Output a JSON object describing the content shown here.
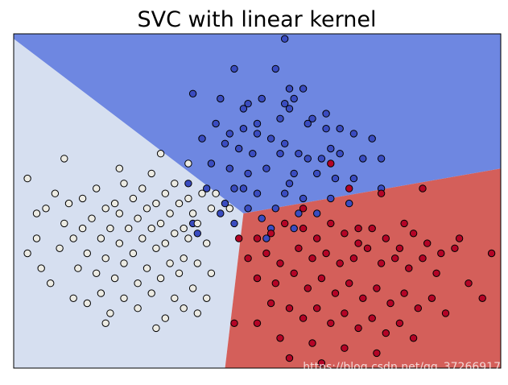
{
  "page": {
    "watermark": "https://blog.csdn.net/qq_37266917"
  },
  "chart_data": {
    "type": "scatter",
    "title": "SVC with linear kernel",
    "xlabel": "",
    "ylabel": "",
    "xlim": [
      -4.3,
      6.3
    ],
    "ylim": [
      -2.3,
      4.4
    ],
    "grid": false,
    "legend": "none",
    "colors": {
      "region_blue": "#6e87e1",
      "region_white": "#d6dff0",
      "region_red": "#d45f5a",
      "point_blue": "#3a4cc0",
      "point_white": "#ecebe3",
      "point_red": "#b40426",
      "point_edge": "#000000",
      "boundary": "#000000"
    },
    "regions": [
      {
        "class": "blue",
        "polygon": [
          [
            -4.3,
            4.4
          ],
          [
            6.3,
            4.4
          ],
          [
            6.3,
            1.7
          ],
          [
            0.7,
            0.8
          ],
          [
            -4.3,
            4.3
          ]
        ]
      },
      {
        "class": "white",
        "polygon": [
          [
            -4.3,
            4.3
          ],
          [
            0.7,
            0.8
          ],
          [
            0.3,
            -2.3
          ],
          [
            -4.3,
            -2.3
          ]
        ]
      },
      {
        "class": "red",
        "polygon": [
          [
            0.7,
            0.8
          ],
          [
            6.3,
            1.7
          ],
          [
            6.3,
            -2.3
          ],
          [
            0.3,
            -2.3
          ]
        ]
      }
    ],
    "series": [
      {
        "class": "blue",
        "points": [
          [
            1.6,
            4.3
          ],
          [
            0.5,
            3.7
          ],
          [
            1.4,
            3.7
          ],
          [
            1.7,
            3.3
          ],
          [
            2.0,
            3.3
          ],
          [
            -0.4,
            3.2
          ],
          [
            1.1,
            3.1
          ],
          [
            1.6,
            3.0
          ],
          [
            1.8,
            3.1
          ],
          [
            0.2,
            3.1
          ],
          [
            0.8,
            3.0
          ],
          [
            0.7,
            2.9
          ],
          [
            1.5,
            2.7
          ],
          [
            1.7,
            2.9
          ],
          [
            2.1,
            2.6
          ],
          [
            2.2,
            2.7
          ],
          [
            2.5,
            2.8
          ],
          [
            0.1,
            2.6
          ],
          [
            0.7,
            2.5
          ],
          [
            1.0,
            2.4
          ],
          [
            1.3,
            2.3
          ],
          [
            1.6,
            2.2
          ],
          [
            2.5,
            2.5
          ],
          [
            2.8,
            2.5
          ],
          [
            3.1,
            2.4
          ],
          [
            3.5,
            2.3
          ],
          [
            -0.2,
            2.3
          ],
          [
            0.3,
            2.2
          ],
          [
            0.6,
            2.1
          ],
          [
            0.9,
            2.0
          ],
          [
            1.5,
            2.0
          ],
          [
            1.9,
            2.0
          ],
          [
            2.4,
            1.9
          ],
          [
            2.8,
            2.0
          ],
          [
            3.3,
            1.9
          ],
          [
            3.7,
            1.9
          ],
          [
            0.0,
            1.8
          ],
          [
            0.4,
            1.7
          ],
          [
            0.8,
            1.6
          ],
          [
            1.2,
            1.7
          ],
          [
            1.8,
            1.6
          ],
          [
            2.3,
            1.6
          ],
          [
            2.7,
            1.5
          ],
          [
            3.1,
            1.5
          ],
          [
            -0.5,
            1.4
          ],
          [
            -0.1,
            1.3
          ],
          [
            0.5,
            1.3
          ],
          [
            1.0,
            1.2
          ],
          [
            1.6,
            1.2
          ],
          [
            2.0,
            1.1
          ],
          [
            2.6,
            1.1
          ],
          [
            3.0,
            1.0
          ],
          [
            0.3,
            1.0
          ],
          [
            0.8,
            0.9
          ],
          [
            1.4,
            0.9
          ],
          [
            1.9,
            0.8
          ],
          [
            2.3,
            0.8
          ],
          [
            1.1,
            0.7
          ],
          [
            0.5,
            0.6
          ],
          [
            1.8,
            0.5
          ],
          [
            1.3,
            0.5
          ],
          [
            -0.4,
            0.6
          ],
          [
            0.2,
            0.8
          ],
          [
            0.7,
            1.3
          ],
          [
            1.7,
            1.4
          ],
          [
            2.1,
            1.9
          ],
          [
            2.6,
            2.1
          ],
          [
            0.4,
            2.4
          ],
          [
            1.0,
            2.6
          ],
          [
            -0.3,
            0.4
          ],
          [
            1.2,
            0.3
          ],
          [
            3.7,
            1.3
          ]
        ]
      },
      {
        "class": "white",
        "points": [
          [
            -4.0,
            1.5
          ],
          [
            -3.8,
            0.8
          ],
          [
            -3.8,
            0.3
          ],
          [
            -3.6,
            0.9
          ],
          [
            -3.4,
            1.2
          ],
          [
            -3.3,
            0.1
          ],
          [
            -3.2,
            0.6
          ],
          [
            -3.1,
            1.0
          ],
          [
            -3.0,
            0.3
          ],
          [
            -2.9,
            -0.3
          ],
          [
            -2.8,
            1.1
          ],
          [
            -2.8,
            0.5
          ],
          [
            -2.7,
            0.0
          ],
          [
            -2.6,
            0.7
          ],
          [
            -2.5,
            -0.4
          ],
          [
            -2.5,
            1.3
          ],
          [
            -2.4,
            0.3
          ],
          [
            -2.3,
            0.9
          ],
          [
            -2.3,
            -0.1
          ],
          [
            -2.2,
            0.5
          ],
          [
            -2.1,
            1.0
          ],
          [
            -2.1,
            -0.5
          ],
          [
            -2.0,
            0.2
          ],
          [
            -2.0,
            0.8
          ],
          [
            -1.9,
            1.4
          ],
          [
            -1.9,
            -0.2
          ],
          [
            -1.8,
            0.5
          ],
          [
            -1.7,
            1.1
          ],
          [
            -1.7,
            0.0
          ],
          [
            -1.6,
            0.7
          ],
          [
            -1.6,
            -0.6
          ],
          [
            -1.5,
            0.3
          ],
          [
            -1.5,
            1.3
          ],
          [
            -1.4,
            0.9
          ],
          [
            -1.4,
            -0.3
          ],
          [
            -1.3,
            0.5
          ],
          [
            -1.3,
            1.6
          ],
          [
            -1.2,
            0.1
          ],
          [
            -1.2,
            1.0
          ],
          [
            -1.1,
            -0.5
          ],
          [
            -1.1,
            0.6
          ],
          [
            -1.0,
            1.2
          ],
          [
            -1.0,
            0.2
          ],
          [
            -0.9,
            -0.2
          ],
          [
            -0.9,
            0.8
          ],
          [
            -0.8,
            1.4
          ],
          [
            -0.8,
            0.4
          ],
          [
            -0.7,
            -0.4
          ],
          [
            -0.7,
            1.0
          ],
          [
            -0.6,
            0.5
          ],
          [
            -0.6,
            -0.1
          ],
          [
            -0.5,
            1.1
          ],
          [
            -0.5,
            0.3
          ],
          [
            -0.4,
            0.8
          ],
          [
            -0.3,
            -0.2
          ],
          [
            -0.3,
            0.6
          ],
          [
            -0.2,
            1.2
          ],
          [
            -0.1,
            0.2
          ],
          [
            0.0,
            0.9
          ],
          [
            0.0,
            -0.4
          ],
          [
            -3.7,
            -0.3
          ],
          [
            -3.5,
            -0.6
          ],
          [
            -3.0,
            -0.9
          ],
          [
            -2.7,
            -1.0
          ],
          [
            -2.4,
            -0.8
          ],
          [
            -2.2,
            -1.2
          ],
          [
            -1.9,
            -0.9
          ],
          [
            -1.6,
            -1.1
          ],
          [
            -1.3,
            -0.8
          ],
          [
            -1.0,
            -1.3
          ],
          [
            -0.8,
            -0.9
          ],
          [
            -0.6,
            -1.1
          ],
          [
            -0.4,
            -0.7
          ],
          [
            -0.1,
            -0.9
          ],
          [
            -1.1,
            2.0
          ],
          [
            -0.5,
            1.8
          ],
          [
            -3.2,
            1.9
          ],
          [
            -2.0,
            1.7
          ],
          [
            -4.0,
            0.0
          ],
          [
            -2.3,
            -1.4
          ],
          [
            -1.2,
            -1.5
          ],
          [
            -0.3,
            -1.2
          ],
          [
            0.4,
            0.9
          ],
          [
            0.1,
            1.2
          ]
        ]
      },
      {
        "class": "red",
        "points": [
          [
            1.0,
            0.3
          ],
          [
            1.3,
            0.4
          ],
          [
            1.6,
            0.6
          ],
          [
            2.0,
            0.5
          ],
          [
            2.3,
            0.3
          ],
          [
            2.6,
            0.6
          ],
          [
            2.9,
            0.4
          ],
          [
            3.2,
            0.2
          ],
          [
            3.5,
            0.5
          ],
          [
            3.8,
            0.3
          ],
          [
            4.1,
            0.1
          ],
          [
            4.4,
            0.4
          ],
          [
            4.7,
            0.2
          ],
          [
            5.0,
            0.0
          ],
          [
            5.3,
            0.1
          ],
          [
            0.8,
            -0.1
          ],
          [
            1.2,
            0.0
          ],
          [
            1.5,
            -0.2
          ],
          [
            1.9,
            0.1
          ],
          [
            2.2,
            -0.1
          ],
          [
            2.5,
            0.0
          ],
          [
            2.8,
            -0.2
          ],
          [
            3.1,
            -0.1
          ],
          [
            3.4,
            0.1
          ],
          [
            3.7,
            -0.2
          ],
          [
            4.0,
            -0.1
          ],
          [
            4.3,
            -0.3
          ],
          [
            4.6,
            -0.1
          ],
          [
            4.9,
            -0.4
          ],
          [
            1.0,
            -0.5
          ],
          [
            1.4,
            -0.6
          ],
          [
            1.8,
            -0.4
          ],
          [
            2.1,
            -0.7
          ],
          [
            2.4,
            -0.5
          ],
          [
            2.7,
            -0.8
          ],
          [
            3.0,
            -0.6
          ],
          [
            3.3,
            -0.9
          ],
          [
            3.6,
            -0.7
          ],
          [
            3.9,
            -1.0
          ],
          [
            4.2,
            -0.8
          ],
          [
            4.5,
            -1.1
          ],
          [
            4.8,
            -0.9
          ],
          [
            5.1,
            -1.2
          ],
          [
            1.3,
            -1.0
          ],
          [
            1.7,
            -1.1
          ],
          [
            2.0,
            -1.3
          ],
          [
            2.3,
            -1.1
          ],
          [
            2.6,
            -1.4
          ],
          [
            2.9,
            -1.2
          ],
          [
            3.2,
            -1.5
          ],
          [
            3.5,
            -1.3
          ],
          [
            3.8,
            -1.6
          ],
          [
            4.1,
            -1.4
          ],
          [
            1.5,
            -1.7
          ],
          [
            2.2,
            -1.8
          ],
          [
            2.9,
            -1.9
          ],
          [
            3.6,
            -2.0
          ],
          [
            1.0,
            -1.4
          ],
          [
            0.6,
            0.3
          ],
          [
            5.6,
            -0.6
          ],
          [
            5.9,
            -0.9
          ],
          [
            6.1,
            0.0
          ],
          [
            5.4,
            0.3
          ],
          [
            4.4,
            -1.7
          ],
          [
            3.0,
            1.3
          ],
          [
            3.7,
            1.2
          ],
          [
            4.6,
            1.3
          ],
          [
            2.6,
            1.8
          ],
          [
            0.5,
            -1.4
          ],
          [
            1.7,
            -2.1
          ],
          [
            2.4,
            -2.2
          ],
          [
            3.2,
            0.5
          ],
          [
            2.0,
            0.9
          ],
          [
            4.2,
            0.6
          ]
        ]
      }
    ]
  }
}
